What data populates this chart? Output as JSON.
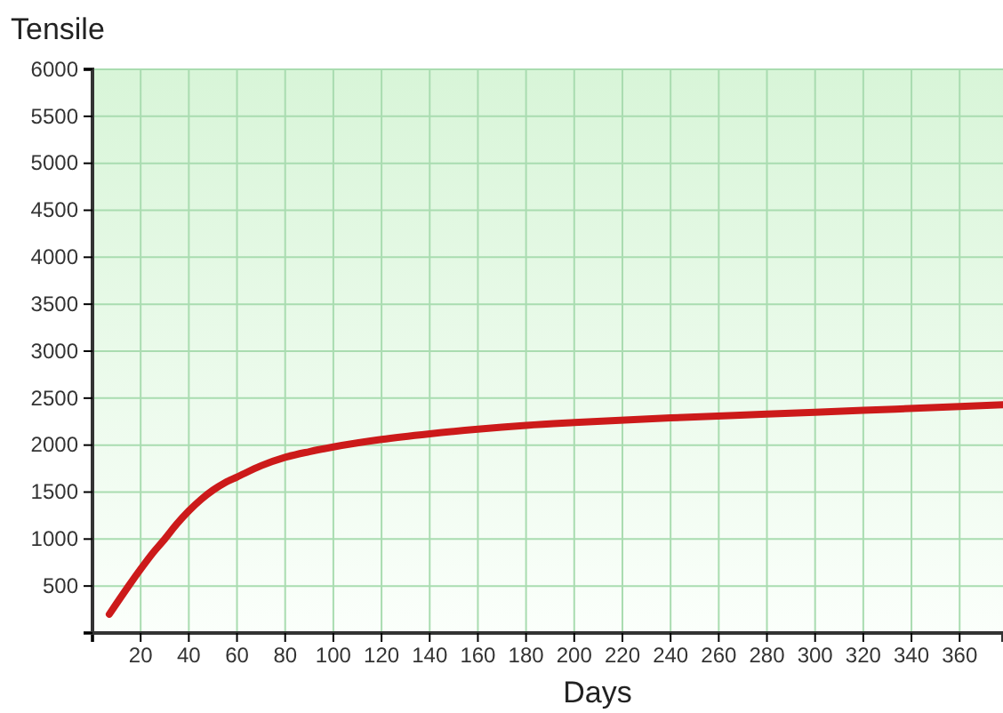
{
  "chart_data": {
    "type": "line",
    "xlabel": "Days",
    "ylabel": "Tensile",
    "xlim": [
      0,
      378
    ],
    "ylim": [
      0,
      6000
    ],
    "xticks": [
      {
        "value": 0,
        "label": null
      },
      20,
      40,
      60,
      80,
      100,
      120,
      140,
      160,
      180,
      200,
      220,
      240,
      260,
      280,
      300,
      320,
      340,
      360
    ],
    "yticks": [
      {
        "value": 0,
        "label": null
      },
      500,
      1000,
      1500,
      2000,
      2500,
      3000,
      3500,
      4000,
      4500,
      5000,
      5500,
      6000
    ],
    "grid": true,
    "line_style": "solid",
    "series": [
      {
        "color": "#cc1a1a",
        "x": [
          7,
          15,
          20,
          25,
          30,
          35,
          40,
          45,
          50,
          55,
          60,
          70,
          80,
          90,
          100,
          120,
          140,
          160,
          180,
          200,
          240,
          280,
          320,
          360,
          378
        ],
        "values": [
          200,
          500,
          680,
          850,
          1000,
          1160,
          1300,
          1420,
          1520,
          1600,
          1660,
          1780,
          1870,
          1930,
          1980,
          2060,
          2120,
          2170,
          2210,
          2240,
          2290,
          2330,
          2370,
          2410,
          2430
        ]
      }
    ]
  }
}
